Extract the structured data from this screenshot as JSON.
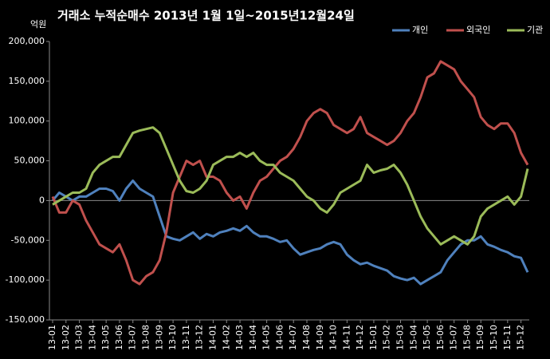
{
  "chart_data": {
    "type": "line",
    "title": "거래소 누적순매수 2013년 1월 1일~2015년12월24일",
    "y_unit": "억원",
    "categories": [
      "13-01",
      null,
      "13-02",
      null,
      "13-03",
      null,
      "13-04",
      null,
      "13-05",
      null,
      "13-06",
      null,
      "13-07",
      null,
      "13-08",
      null,
      "13-09",
      null,
      "13-10",
      null,
      "13-11",
      null,
      "13-12",
      null,
      "14-01",
      null,
      "14-02",
      null,
      "14-03",
      null,
      "14-04",
      null,
      "14-05",
      null,
      "14-06",
      null,
      "14-07",
      null,
      "14-08",
      null,
      "14-09",
      null,
      "14-10",
      null,
      "14-11",
      null,
      "14-12",
      null,
      "15-01",
      null,
      "15-02",
      null,
      "15-03",
      null,
      "15-04",
      null,
      "15-05",
      null,
      "15-06",
      null,
      "15-07",
      null,
      "15-08",
      null,
      "15-09",
      null,
      "15-10",
      null,
      "15-11",
      null,
      "15-12",
      null
    ],
    "series": [
      {
        "name": "개인",
        "color": "#4f81bd",
        "values": [
          0,
          10000,
          5000,
          0,
          5000,
          5000,
          10000,
          15000,
          15000,
          12000,
          0,
          15000,
          25000,
          15000,
          10000,
          5000,
          -20000,
          -45000,
          -48000,
          -50000,
          -45000,
          -40000,
          -48000,
          -42000,
          -45000,
          -40000,
          -38000,
          -35000,
          -38000,
          -32000,
          -40000,
          -45000,
          -45000,
          -48000,
          -52000,
          -50000,
          -60000,
          -68000,
          -65000,
          -62000,
          -60000,
          -55000,
          -52000,
          -55000,
          -68000,
          -75000,
          -80000,
          -78000,
          -82000,
          -85000,
          -88000,
          -95000,
          -98000,
          -100000,
          -97000,
          -105000,
          -100000,
          -95000,
          -90000,
          -75000,
          -65000,
          -55000,
          -50000,
          -50000,
          -45000,
          -55000,
          -58000,
          -62000,
          -65000,
          -70000,
          -72000,
          -90000
        ]
      },
      {
        "name": "외국인",
        "color": "#c0504d",
        "values": [
          5000,
          -15000,
          -15000,
          0,
          -5000,
          -25000,
          -40000,
          -55000,
          -60000,
          -65000,
          -55000,
          -75000,
          -100000,
          -105000,
          -95000,
          -90000,
          -75000,
          -40000,
          10000,
          30000,
          50000,
          45000,
          50000,
          30000,
          30000,
          25000,
          10000,
          0,
          5000,
          -10000,
          10000,
          25000,
          30000,
          40000,
          50000,
          55000,
          65000,
          80000,
          100000,
          110000,
          115000,
          110000,
          95000,
          90000,
          85000,
          90000,
          105000,
          85000,
          80000,
          75000,
          70000,
          75000,
          85000,
          100000,
          110000,
          130000,
          155000,
          160000,
          175000,
          170000,
          165000,
          150000,
          140000,
          130000,
          105000,
          95000,
          90000,
          97000,
          97000,
          85000,
          60000,
          45000
        ]
      },
      {
        "name": "기관",
        "color": "#9bbb59",
        "values": [
          -5000,
          0,
          5000,
          10000,
          10000,
          15000,
          35000,
          45000,
          50000,
          55000,
          55000,
          70000,
          85000,
          88000,
          90000,
          92000,
          85000,
          65000,
          45000,
          25000,
          12000,
          10000,
          15000,
          25000,
          45000,
          50000,
          55000,
          55000,
          60000,
          55000,
          60000,
          50000,
          45000,
          45000,
          35000,
          30000,
          25000,
          15000,
          5000,
          0,
          -10000,
          -15000,
          -5000,
          10000,
          15000,
          20000,
          25000,
          45000,
          35000,
          38000,
          40000,
          45000,
          35000,
          20000,
          0,
          -20000,
          -35000,
          -45000,
          -55000,
          -50000,
          -45000,
          -50000,
          -55000,
          -45000,
          -20000,
          -10000,
          -5000,
          0,
          5000,
          -5000,
          5000,
          40000
        ]
      }
    ],
    "ylim": [
      -150000,
      200000
    ],
    "yticks": [
      {
        "value": -150000,
        "label": "-150,000"
      },
      {
        "value": -100000,
        "label": "-100,000"
      },
      {
        "value": -50000,
        "label": "-50,000"
      },
      0,
      {
        "value": 50000,
        "label": "50,000"
      },
      {
        "value": 100000,
        "label": "100,000"
      },
      {
        "value": 150000,
        "label": "150,000"
      },
      {
        "value": 200000,
        "label": "200,000"
      }
    ],
    "legend": "top-right"
  }
}
